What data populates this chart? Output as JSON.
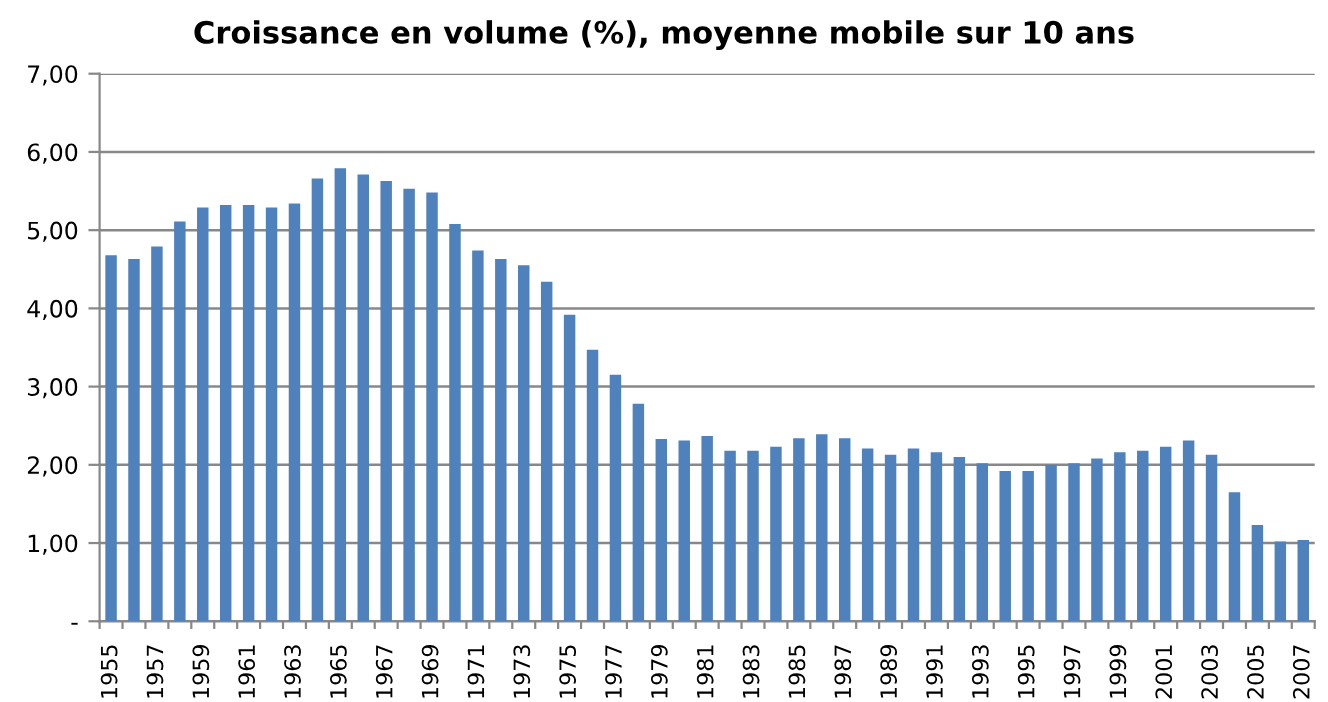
{
  "chart_data": {
    "type": "bar",
    "title": "Croissance en volume (%), moyenne mobile sur 10 ans",
    "categories": [
      "1955",
      null,
      "1957",
      null,
      "1959",
      null,
      "1961",
      null,
      "1963",
      null,
      "1965",
      null,
      "1967",
      null,
      "1969",
      null,
      "1971",
      null,
      "1973",
      null,
      "1975",
      null,
      "1977",
      null,
      "1979",
      null,
      "1981",
      null,
      "1983",
      null,
      "1985",
      null,
      "1987",
      null,
      "1989",
      null,
      "1991",
      null,
      "1993",
      null,
      "1995",
      null,
      "1997",
      null,
      "1999",
      null,
      "2001",
      null,
      "2003",
      null,
      "2005",
      null,
      "2007"
    ],
    "values": [
      4.68,
      4.63,
      4.79,
      5.11,
      5.29,
      5.32,
      5.32,
      5.29,
      5.34,
      5.66,
      5.79,
      5.71,
      5.63,
      5.53,
      5.48,
      5.08,
      4.74,
      4.63,
      4.55,
      4.34,
      3.92,
      3.47,
      3.15,
      2.78,
      2.33,
      2.31,
      2.37,
      2.18,
      2.18,
      2.23,
      2.34,
      2.39,
      2.34,
      2.21,
      2.13,
      2.21,
      2.16,
      2.1,
      2.02,
      1.92,
      1.92,
      2.0,
      2.02,
      2.08,
      2.16,
      2.18,
      2.23,
      2.31,
      2.13,
      1.65,
      1.23,
      1.02,
      1.04
    ],
    "color": "#4f81bd",
    "ylim": [
      0,
      7
    ],
    "yticks": [
      {
        "value": 0,
        "label": "-"
      },
      {
        "value": 1,
        "label": "1,00"
      },
      {
        "value": 2,
        "label": "2,00"
      },
      {
        "value": 3,
        "label": "3,00"
      },
      {
        "value": 4,
        "label": "4,00"
      },
      {
        "value": 5,
        "label": "5,00"
      },
      {
        "value": 6,
        "label": "6,00"
      },
      {
        "value": 7,
        "label": "7,00"
      }
    ],
    "grid": "y",
    "legend": false
  }
}
